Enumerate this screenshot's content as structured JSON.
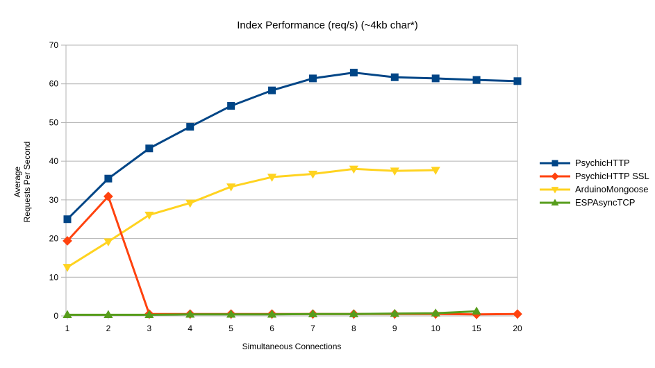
{
  "chart_data": {
    "type": "line",
    "title": "Index Performance (req/s) (~4kb char*)",
    "xlabel": "Simultaneous Connections",
    "ylabel_lines": [
      "Average",
      "Requests Per Second"
    ],
    "categories": [
      "1",
      "2",
      "3",
      "4",
      "5",
      "6",
      "7",
      "8",
      "9",
      "10",
      "15",
      "20"
    ],
    "ylim": [
      0,
      70
    ],
    "ytick_step": 10,
    "yticks": [
      0,
      10,
      20,
      30,
      40,
      50,
      60,
      70
    ],
    "grid": "horizontal",
    "legend_position": "right",
    "axis_color": "#b3b3b3",
    "text_color": "#000000",
    "background_color": "#ffffff",
    "series": [
      {
        "name": "PsychicHTTP",
        "color": "#004586",
        "marker": "square",
        "values": [
          25.0,
          35.5,
          43.3,
          48.9,
          54.3,
          58.3,
          61.4,
          62.9,
          61.7,
          61.4,
          61.0,
          60.7
        ]
      },
      {
        "name": "PsychicHTTP SSL",
        "color": "#ff420e",
        "marker": "diamond",
        "values": [
          19.4,
          30.9,
          0.5,
          0.5,
          0.5,
          0.5,
          0.5,
          0.5,
          0.5,
          0.5,
          0.4,
          0.5
        ]
      },
      {
        "name": "ArduinoMongoose",
        "color": "#ffd320",
        "marker": "triangle-down",
        "values": [
          12.6,
          19.2,
          26.1,
          29.2,
          33.4,
          35.9,
          36.7,
          38.0,
          37.5,
          37.7
        ]
      },
      {
        "name": "ESPAsyncTCP",
        "color": "#579d1c",
        "marker": "triangle-up",
        "values": [
          0.3,
          0.3,
          0.3,
          0.4,
          0.4,
          0.4,
          0.5,
          0.5,
          0.6,
          0.7,
          1.2
        ]
      }
    ]
  }
}
